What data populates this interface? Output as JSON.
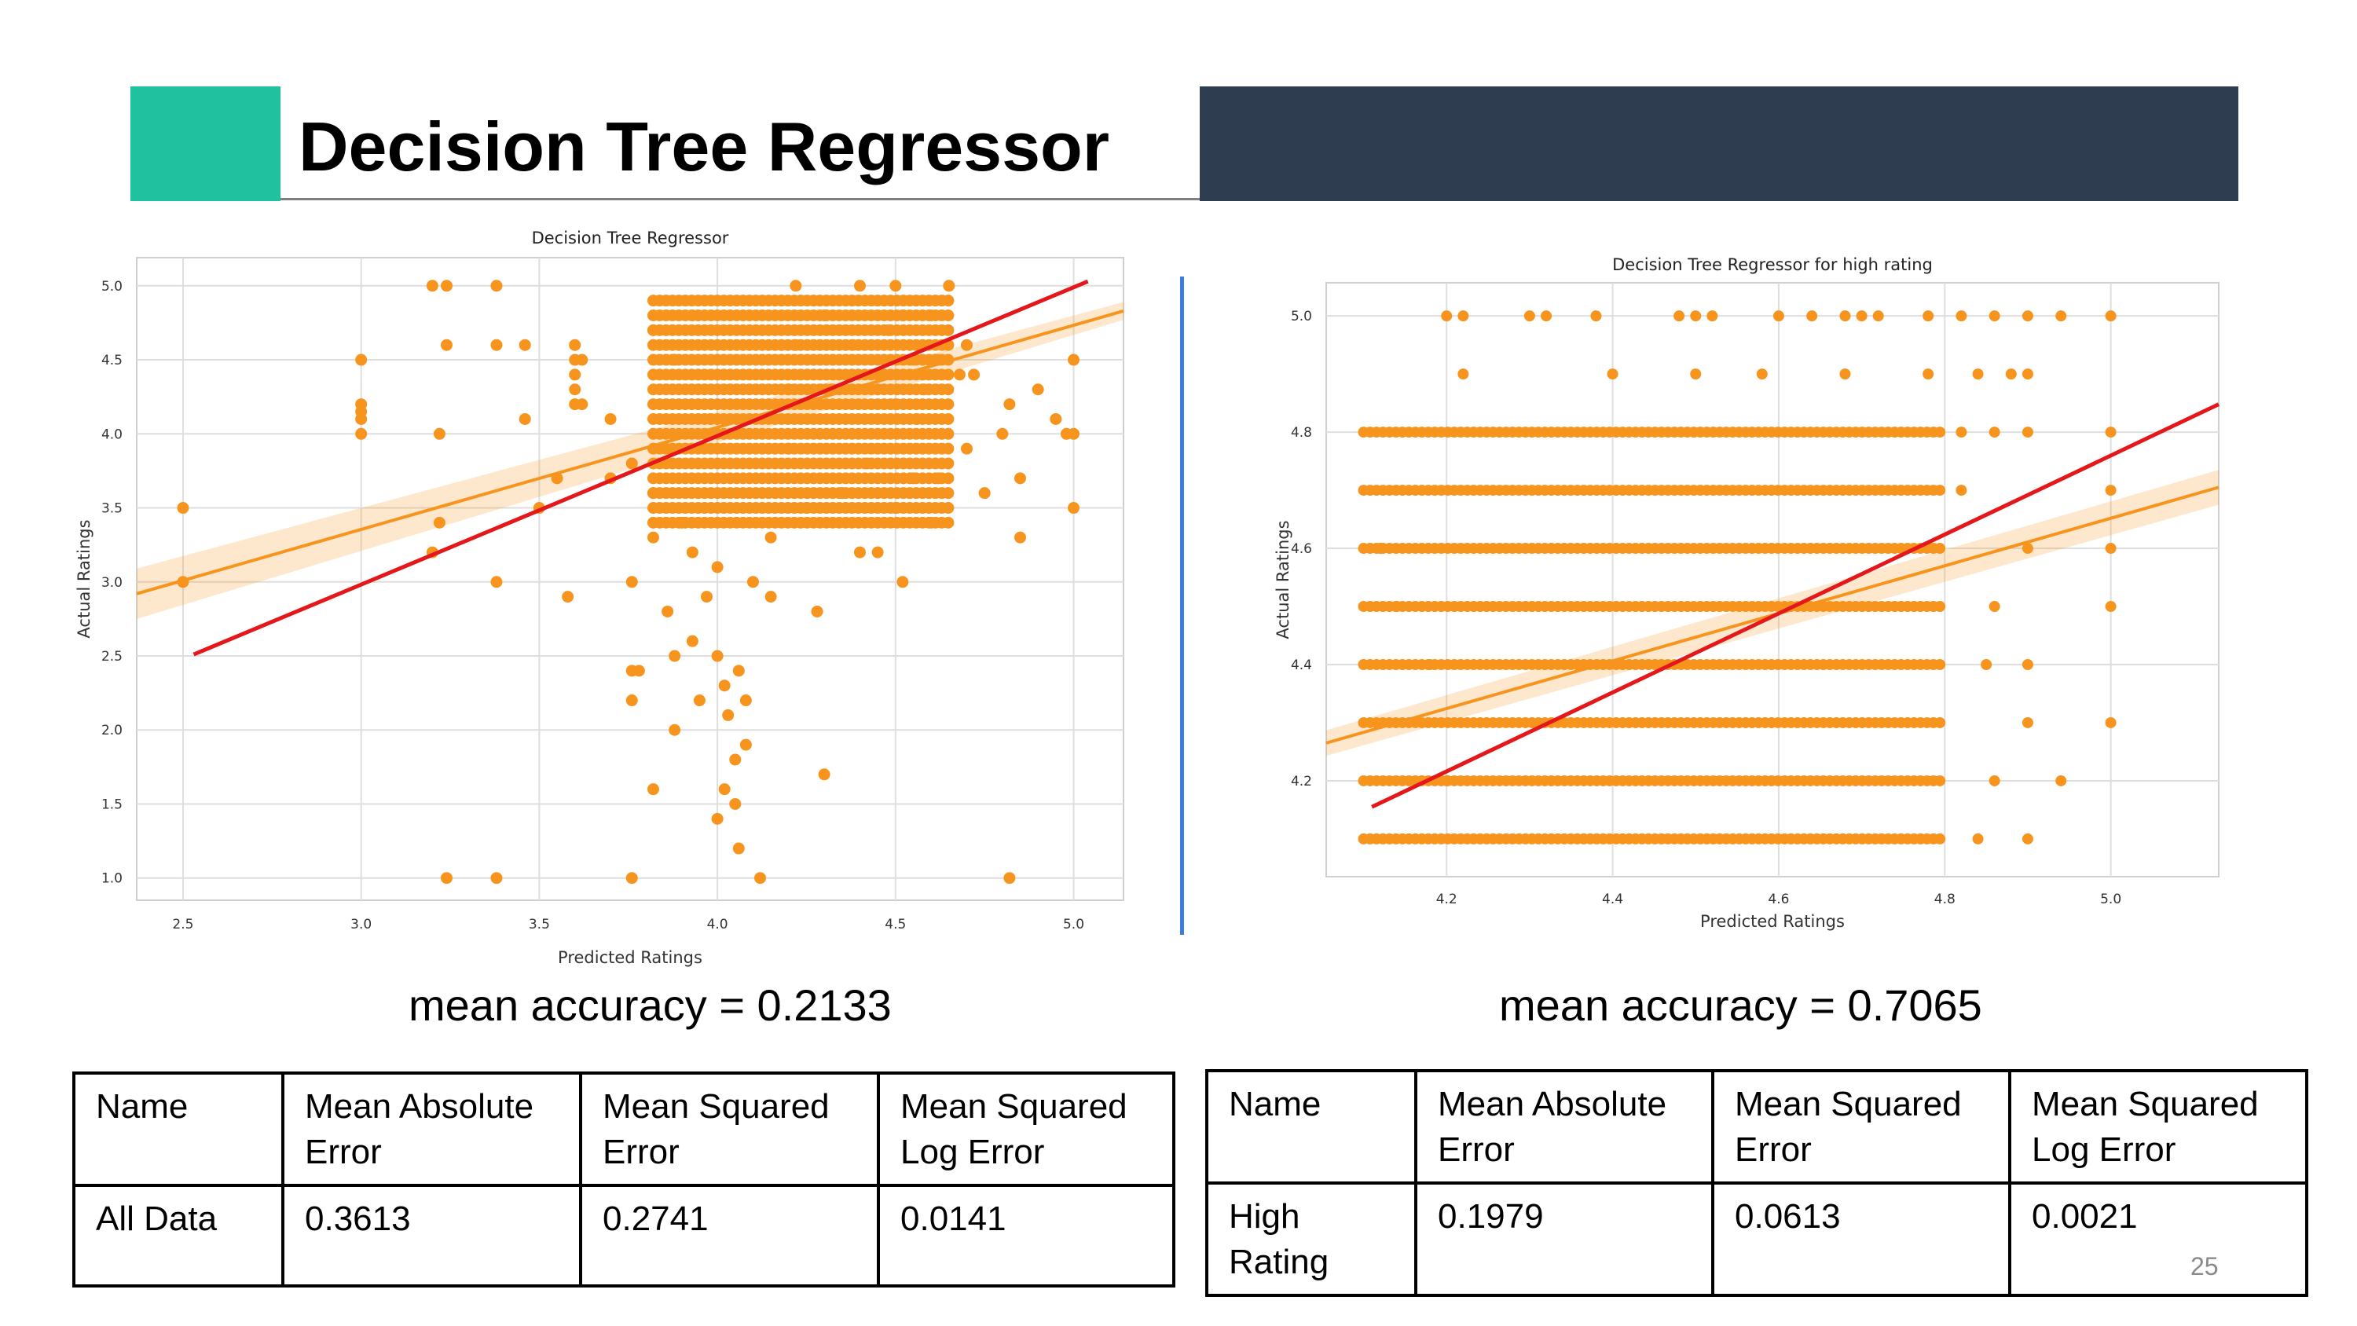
{
  "slide": {
    "title": "Decision Tree Regressor",
    "page_number": "25",
    "colors": {
      "accent": "#1fc19f",
      "dark_band": "#2e3e50",
      "divider": "#3b7ee0",
      "points": "#f7941d",
      "fit_line": "#f7941d",
      "reference_line": "#e4171b"
    }
  },
  "left": {
    "accuracy": "mean accuracy = 0.2133",
    "table": {
      "headers": [
        [
          "Name"
        ],
        [
          "Mean Absolute",
          "Error"
        ],
        [
          "Mean Squared",
          "Error"
        ],
        [
          "Mean Squared",
          "Log Error"
        ]
      ],
      "row": [
        [
          "All Data"
        ],
        [
          "0.3613"
        ],
        [
          "0.2741"
        ],
        [
          "0.0141"
        ]
      ]
    }
  },
  "right": {
    "accuracy": "mean accuracy = 0.7065",
    "table": {
      "headers": [
        [
          "Name"
        ],
        [
          "Mean Absolute",
          "Error"
        ],
        [
          "Mean Squared",
          "Error"
        ],
        [
          "Mean Squared",
          "Log Error"
        ]
      ],
      "row": [
        [
          "High",
          "Rating"
        ],
        [
          "0.1979"
        ],
        [
          "0.0613"
        ],
        [
          "0.0021"
        ]
      ]
    }
  },
  "chart_data": [
    {
      "type": "scatter",
      "title": "Decision Tree Regressor",
      "xlabel": "Predicted Ratings",
      "ylabel": "Actual Ratings",
      "xlim": [
        2.37,
        5.14
      ],
      "ylim": [
        0.85,
        5.19
      ],
      "xticks": [
        "2.5",
        "3.0",
        "3.5",
        "4.0",
        "4.5",
        "5.0"
      ],
      "yticks": [
        "1.0",
        "1.5",
        "2.0",
        "2.5",
        "3.0",
        "3.5",
        "4.0",
        "4.5",
        "5.0"
      ],
      "grid": true,
      "points_x": [
        2.5,
        2.5,
        3.0,
        3.0,
        3.0,
        3.0,
        3.0,
        3.2,
        3.2,
        3.22,
        3.22,
        3.24,
        3.24,
        3.24,
        3.38,
        3.38,
        3.38,
        3.38,
        3.46,
        3.46,
        3.5,
        3.55,
        3.58,
        3.6,
        3.6,
        3.6,
        3.6,
        3.6,
        3.62,
        3.62,
        3.7,
        3.7,
        3.76,
        3.76,
        3.76,
        3.76,
        3.76,
        3.78,
        3.82,
        3.82,
        3.82,
        3.82,
        3.86,
        3.88,
        3.88,
        3.88,
        3.9,
        3.93,
        3.93,
        3.93,
        3.95,
        3.97,
        3.98,
        4.0,
        4.0,
        4.0,
        4.02,
        4.02,
        4.03,
        4.05,
        4.05,
        4.06,
        4.06,
        4.08,
        4.08,
        4.1,
        4.12,
        4.15,
        4.15,
        4.18,
        4.2,
        4.2,
        4.22,
        4.22,
        4.25,
        4.28,
        4.3,
        4.3,
        4.32,
        4.35,
        4.38,
        4.4,
        4.4,
        4.42,
        4.45,
        4.45,
        4.48,
        4.5,
        4.5,
        4.5,
        4.52,
        4.52,
        4.55,
        4.55,
        4.56,
        4.58,
        4.6,
        4.6,
        4.62,
        4.62,
        4.65,
        4.68,
        4.7,
        4.7,
        4.72,
        4.75,
        4.8,
        4.82,
        4.82,
        4.85,
        4.85,
        4.9,
        4.95,
        4.98,
        5.0,
        5.0,
        5.0
      ],
      "points_y": [
        3.5,
        3.0,
        4.5,
        4.2,
        4.1,
        4.0,
        4.15,
        5.0,
        3.2,
        3.4,
        4.0,
        5.0,
        4.6,
        1.0,
        5.0,
        4.6,
        3.0,
        1.0,
        4.6,
        4.1,
        3.5,
        3.7,
        2.9,
        4.6,
        4.5,
        4.4,
        4.3,
        4.2,
        4.5,
        4.2,
        3.7,
        4.1,
        3.0,
        2.4,
        2.2,
        1.0,
        3.8,
        2.4,
        1.6,
        3.6,
        3.3,
        4.7,
        2.8,
        2.5,
        4.5,
        2.0,
        3.4,
        2.6,
        3.2,
        4.8,
        2.2,
        2.9,
        4.1,
        2.5,
        1.4,
        3.1,
        1.6,
        2.3,
        2.1,
        1.8,
        1.5,
        2.4,
        1.2,
        2.2,
        1.9,
        3.0,
        1.0,
        2.9,
        3.3,
        4.6,
        4.3,
        3.9,
        5.0,
        4.6,
        3.5,
        2.8,
        1.7,
        4.8,
        4.3,
        3.6,
        4.6,
        5.0,
        3.2,
        3.8,
        4.3,
        3.2,
        4.7,
        5.0,
        4.2,
        3.5,
        4.8,
        3.0,
        4.5,
        3.7,
        4.1,
        4.3,
        4.8,
        3.4,
        4.5,
        3.7,
        5.0,
        4.4,
        3.9,
        4.6,
        4.4,
        3.6,
        4.0,
        1.0,
        4.2,
        3.3,
        3.7,
        4.3,
        4.1,
        4.0,
        4.5,
        4.0,
        3.5
      ],
      "dense_region": {
        "x_range": [
          3.82,
          4.65
        ],
        "y_values": [
          4.9,
          4.8,
          4.7,
          4.6,
          4.5,
          4.4,
          4.3,
          4.2,
          4.1,
          4.0,
          3.9,
          3.8,
          3.7,
          3.6,
          3.5,
          3.4
        ]
      },
      "fit_line": {
        "x": [
          2.37,
          5.14
        ],
        "y": [
          2.92,
          4.83
        ],
        "ci_halfwidth": [
          0.17,
          0.06
        ]
      },
      "reference_line": {
        "x": [
          2.53,
          5.04
        ],
        "y": [
          2.51,
          5.03
        ]
      }
    },
    {
      "type": "scatter",
      "title": "Decision Tree Regressor for high rating",
      "xlabel": "Predicted Ratings",
      "ylabel": "Actual Ratings",
      "xlim": [
        4.055,
        5.13
      ],
      "ylim": [
        4.035,
        5.057
      ],
      "xticks": [
        "4.2",
        "4.4",
        "4.6",
        "4.8",
        "5.0"
      ],
      "yticks": [
        "4.2",
        "4.4",
        "4.6",
        "4.8",
        "5.0"
      ],
      "grid": true,
      "points_x": [
        4.2,
        4.22,
        4.3,
        4.32,
        4.38,
        4.48,
        4.5,
        4.52,
        4.6,
        4.64,
        4.68,
        4.7,
        4.72,
        4.78,
        4.82,
        4.86,
        4.9,
        4.94,
        5.0,
        4.22,
        4.4,
        4.5,
        4.58,
        4.68,
        4.78,
        4.84,
        4.88,
        4.9,
        4.12,
        4.14,
        4.18,
        4.2,
        4.82,
        4.86,
        4.9,
        5.0,
        4.82,
        5.0,
        4.9,
        5.0,
        4.86,
        4.9,
        5.0,
        4.85,
        4.9,
        5.0,
        4.86,
        4.94,
        4.84,
        4.9
      ],
      "points_y": [
        5.0,
        5.0,
        5.0,
        5.0,
        5.0,
        5.0,
        5.0,
        5.0,
        5.0,
        5.0,
        5.0,
        5.0,
        5.0,
        5.0,
        5.0,
        5.0,
        5.0,
        5.0,
        5.0,
        4.9,
        4.9,
        4.9,
        4.9,
        4.9,
        4.9,
        4.9,
        4.9,
        4.9,
        4.6,
        4.5,
        4.4,
        4.2,
        4.8,
        4.8,
        4.8,
        4.8,
        4.7,
        4.7,
        4.6,
        4.6,
        4.5,
        4.4,
        4.5,
        4.4,
        4.3,
        4.3,
        4.2,
        4.2,
        4.1,
        4.1
      ],
      "dense_region": {
        "x_range": [
          4.1,
          4.8
        ],
        "y_values": [
          4.8,
          4.7,
          4.6,
          4.5,
          4.4,
          4.3,
          4.2,
          4.1
        ]
      },
      "fit_line": {
        "x": [
          4.055,
          5.13
        ],
        "y": [
          4.265,
          4.705
        ],
        "ci_halfwidth": [
          0.022,
          0.03
        ]
      },
      "reference_line": {
        "x": [
          4.11,
          5.13
        ],
        "y": [
          4.155,
          4.848
        ]
      }
    }
  ]
}
